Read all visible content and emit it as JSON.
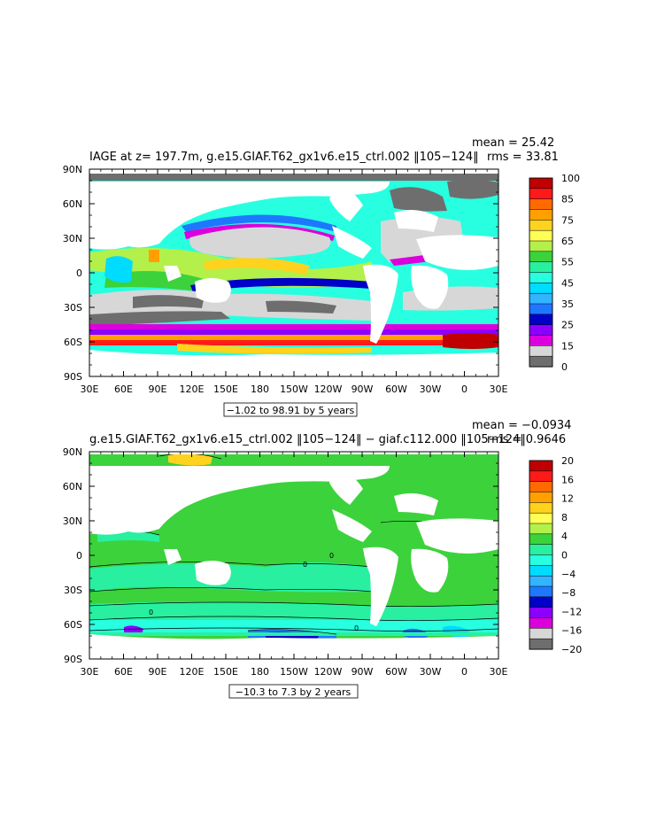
{
  "chart_data": [
    {
      "type": "heatmap",
      "title": "IAGE at z= 197.7m, g.e15.GIAF.T62_gx1v6.e15_ctrl.002 ‖105−124‖",
      "stats": {
        "mean": "mean = 25.42",
        "rms": "rms = 33.81"
      },
      "x_ticks": [
        "30E",
        "60E",
        "90E",
        "120E",
        "150E",
        "180",
        "150W",
        "120W",
        "90W",
        "60W",
        "30W",
        "0",
        "30E"
      ],
      "y_ticks": [
        "90N",
        "60N",
        "30N",
        "0",
        "30S",
        "60S",
        "90S"
      ],
      "contour_info": "−1.02 to 98.91 by 5 years",
      "colorbar": {
        "labels": [
          "100",
          "85",
          "75",
          "65",
          "55",
          "45",
          "35",
          "25",
          "15",
          "0"
        ],
        "colors": [
          "#c00000",
          "#ff1a1a",
          "#ff6a00",
          "#ffa000",
          "#ffd21e",
          "#ffff55",
          "#b4f04a",
          "#3cd23c",
          "#28f0a0",
          "#28ffe0",
          "#00dcff",
          "#32b4ff",
          "#1e78ff",
          "#0000c8",
          "#8c00ff",
          "#dc00dc",
          "#d7d7d7",
          "#6e6e6e"
        ]
      }
    },
    {
      "type": "heatmap",
      "title": "g.e15.GIAF.T62_gx1v6.e15_ctrl.002 ‖105−124‖ − giaf.c112.000 ‖105−124‖",
      "stats": {
        "mean": "mean = −0.0934",
        "rms": "rms = 0.9646"
      },
      "x_ticks": [
        "30E",
        "60E",
        "90E",
        "120E",
        "150E",
        "180",
        "150W",
        "120W",
        "90W",
        "60W",
        "30W",
        "0",
        "30E"
      ],
      "y_ticks": [
        "90N",
        "60N",
        "30N",
        "0",
        "30S",
        "60S",
        "90S"
      ],
      "contour_info": "−10.3 to 7.3 by 2 years",
      "colorbar": {
        "labels": [
          "20",
          "16",
          "12",
          "8",
          "4",
          "0",
          "−4",
          "−8",
          "−12",
          "−16",
          "−20"
        ],
        "colors": [
          "#c00000",
          "#ff1a1a",
          "#ff6a00",
          "#ffa000",
          "#ffd21e",
          "#ffff55",
          "#b4f04a",
          "#3cd23c",
          "#28f0a0",
          "#28ffe0",
          "#00dcff",
          "#32b4ff",
          "#1e78ff",
          "#0000c8",
          "#8c00ff",
          "#dc00dc",
          "#d7d7d7",
          "#6e6e6e"
        ]
      }
    }
  ]
}
